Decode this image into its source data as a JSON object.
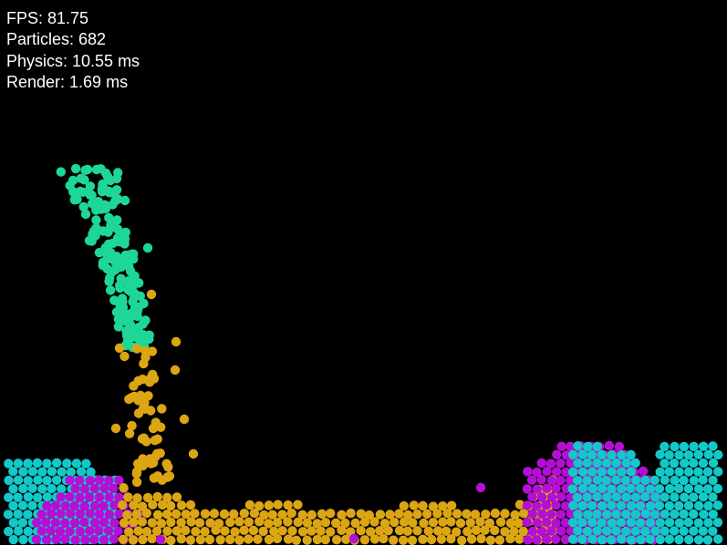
{
  "stats": {
    "fps": "FPS: 81.75",
    "particles": "Particles: 682",
    "physics": "Physics: 10.55 ms",
    "render": "Render: 1.69 ms"
  },
  "colors": {
    "background": "#000000",
    "text": "#ffffff",
    "water": "#14c8c8",
    "goo": "#b40fd4",
    "sand": "#dca514",
    "slime": "#1ed796"
  }
}
